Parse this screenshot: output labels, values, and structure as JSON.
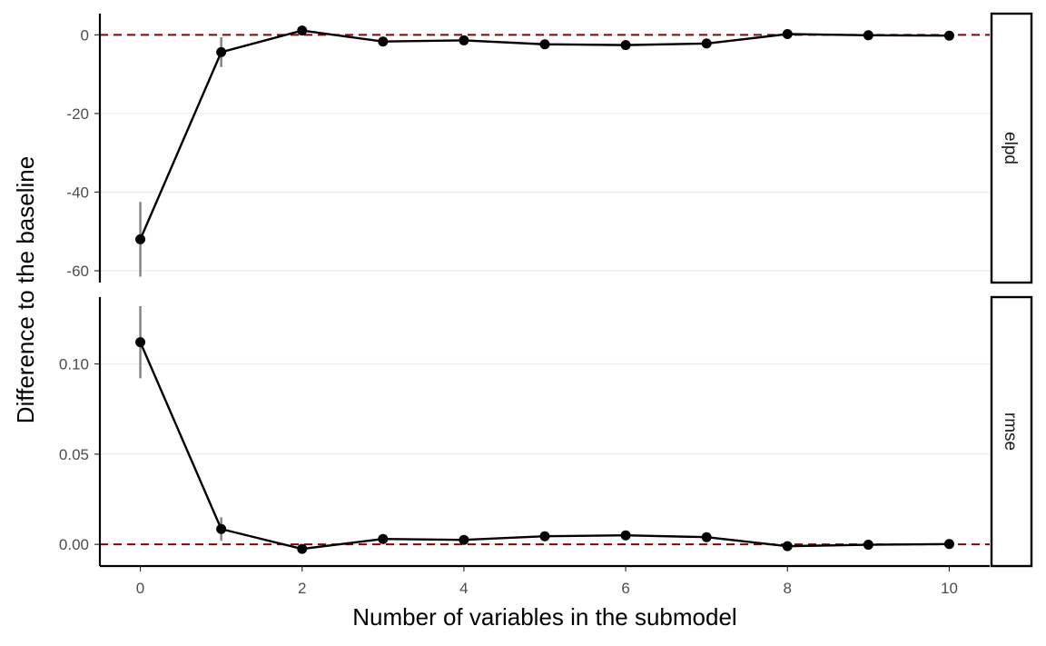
{
  "chart_data": {
    "type": "line",
    "xlabel": "Number of variables in the submodel",
    "ylabel": "Difference to the baseline",
    "x": [
      0,
      1,
      2,
      3,
      4,
      5,
      6,
      7,
      8,
      9,
      10
    ],
    "x_ticks": [
      "0",
      "2",
      "4",
      "6",
      "8",
      "10"
    ],
    "xlim": [
      -0.5,
      10.5
    ],
    "grid": "horizontal major",
    "reference_line": {
      "y": 0,
      "style": "dashed",
      "color": "#8b0000"
    },
    "line_color": "#000000",
    "errorbar_color": "#808080",
    "panels": [
      {
        "strip": "elpd",
        "ylim": [
          -63,
          5.4
        ],
        "y_ticks": [
          {
            "value": 0,
            "label": "0"
          },
          {
            "value": -20,
            "label": "-20"
          },
          {
            "value": -40,
            "label": "-40"
          },
          {
            "value": -60,
            "label": "-60"
          }
        ],
        "values": [
          -52,
          -4.4,
          1.1,
          -1.7,
          -1.4,
          -2.4,
          -2.6,
          -2.2,
          0.2,
          -0.1,
          -0.2
        ],
        "lower": [
          -61.5,
          -8.2,
          1.1,
          -1.7,
          -1.4,
          -2.4,
          -2.6,
          -2.2,
          0.2,
          -0.1,
          -0.2
        ],
        "upper": [
          -42.5,
          -0.6,
          1.1,
          -1.7,
          -1.4,
          -2.4,
          -2.6,
          -2.2,
          0.2,
          -0.1,
          -0.2
        ]
      },
      {
        "strip": "rmse",
        "ylim": [
          -0.012,
          0.137
        ],
        "y_ticks": [
          {
            "value": 0.1,
            "label": "0.10"
          },
          {
            "value": 0.05,
            "label": "0.05"
          },
          {
            "value": 0.0,
            "label": "0.00"
          }
        ],
        "values": [
          0.112,
          0.0085,
          -0.0025,
          0.003,
          0.0025,
          0.0045,
          0.005,
          0.004,
          -0.001,
          -0.0002,
          0.0002
        ],
        "lower": [
          0.092,
          0.002,
          -0.0025,
          0.003,
          0.0025,
          0.0045,
          0.005,
          0.004,
          -0.001,
          -0.0002,
          0.0002
        ],
        "upper": [
          0.132,
          0.015,
          -0.0025,
          0.003,
          0.0025,
          0.0045,
          0.005,
          0.004,
          -0.001,
          -0.0002,
          0.0002
        ]
      }
    ]
  }
}
